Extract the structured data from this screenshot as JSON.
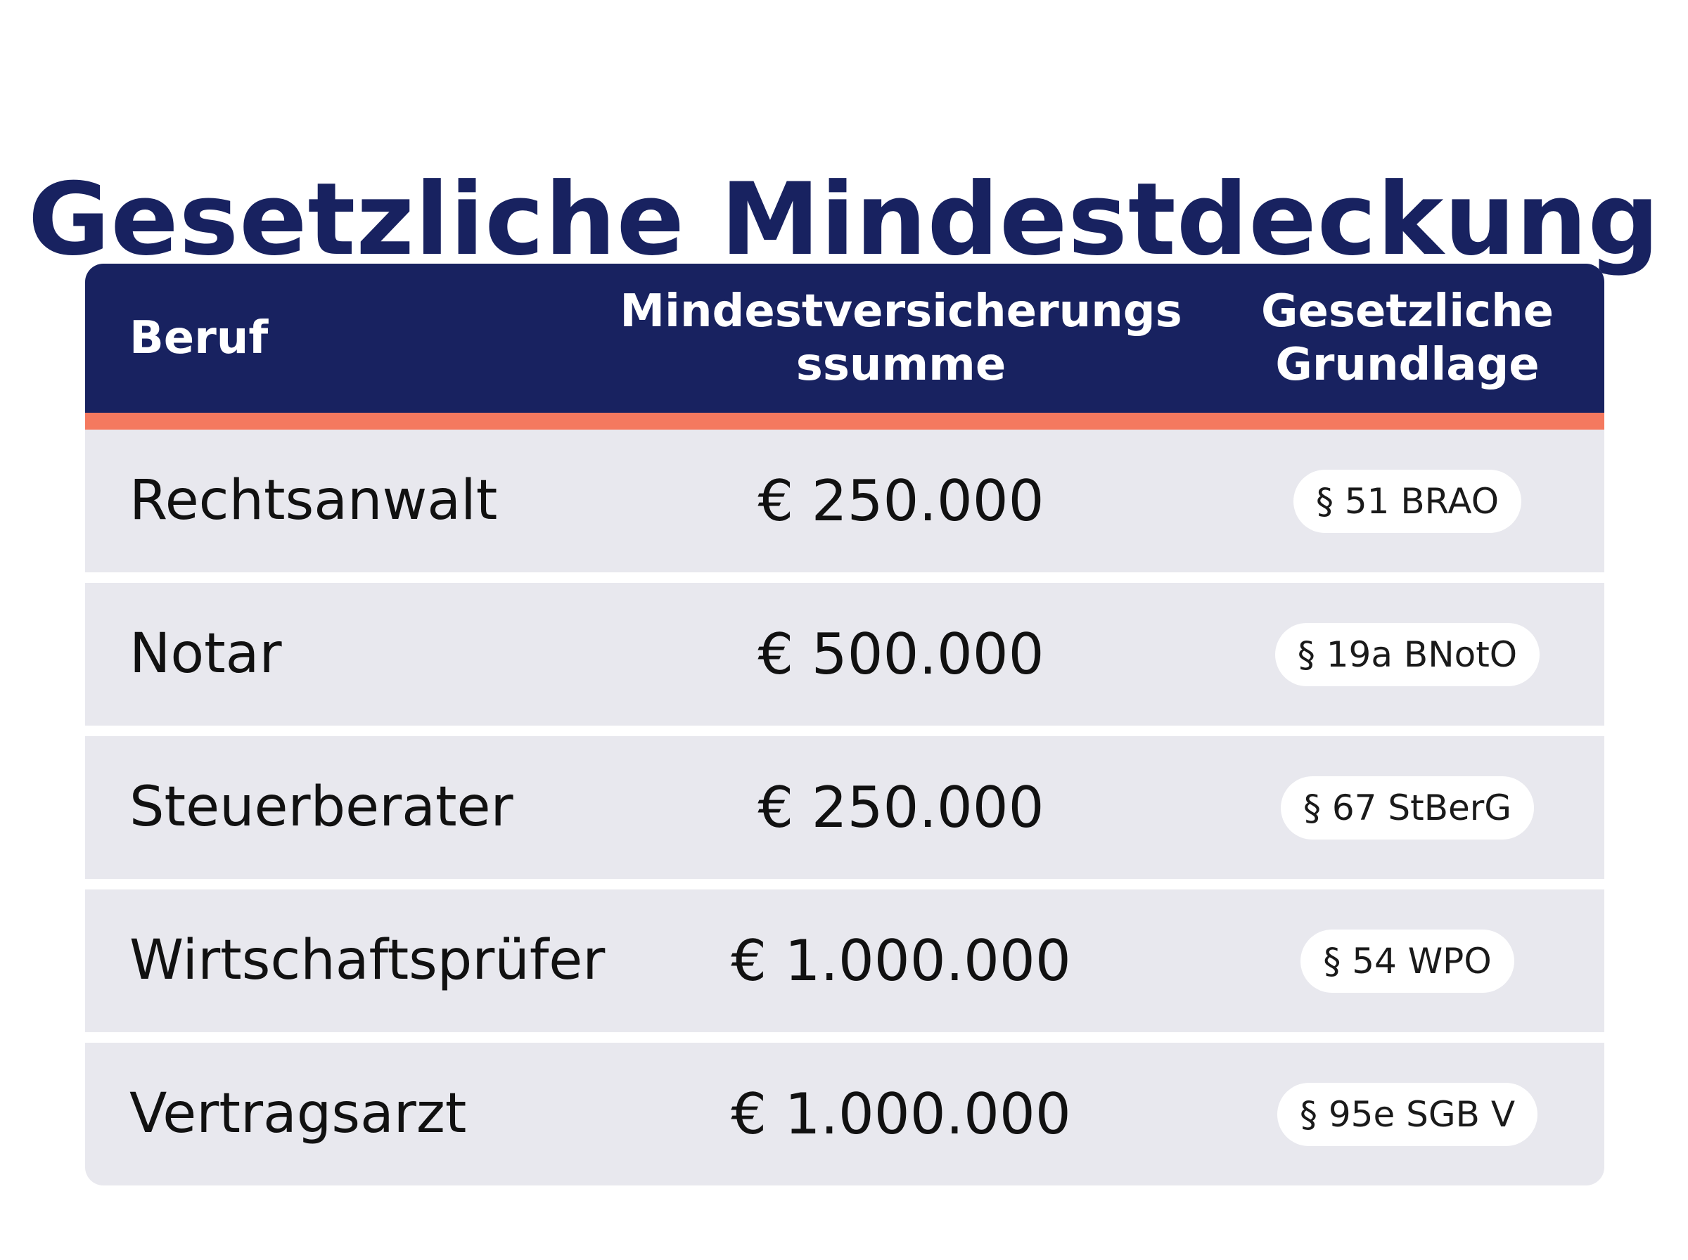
{
  "title": "Gesetzliche Mindestdeckung",
  "table": {
    "headers": {
      "beruf": "Beruf",
      "summe": "Mindestversicherungs\nssumme",
      "grundlage": "Gesetzliche\nGrundlage"
    },
    "rows": [
      {
        "beruf": "Rechtsanwalt",
        "summe": "€ 250.000",
        "grundlage": "§ 51 BRAO"
      },
      {
        "beruf": "Notar",
        "summe": "€ 500.000",
        "grundlage": "§ 19a BNotO"
      },
      {
        "beruf": "Steuerberater",
        "summe": "€ 250.000",
        "grundlage": "§ 67 StBerG"
      },
      {
        "beruf": "Wirtschaftsprüfer",
        "summe": "€ 1.000.000",
        "grundlage": "§ 54 WPO"
      },
      {
        "beruf": "Vertragsarzt",
        "summe": "€ 1.000.000",
        "grundlage": "§ 95e SGB V"
      }
    ]
  },
  "colors": {
    "header_bg": "#182260",
    "accent": "#F4795F",
    "row_bg": "#E8E8EE",
    "title": "#182260"
  }
}
